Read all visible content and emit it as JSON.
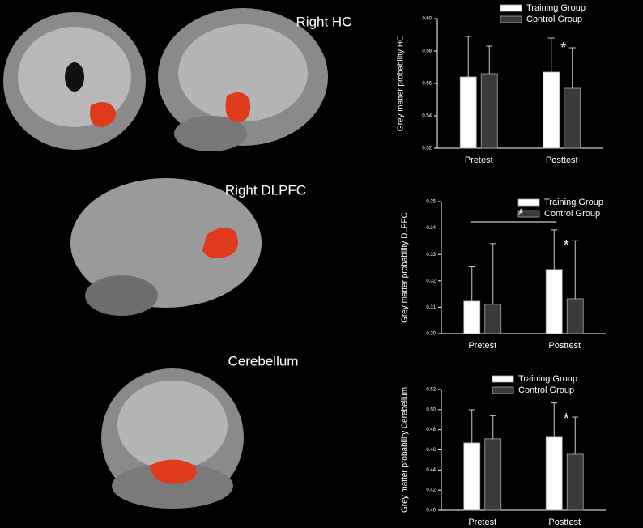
{
  "region_labels": [
    "Right HC",
    "Right DLPFC",
    "Cerebellum"
  ],
  "chart_data": [
    {
      "type": "bar",
      "ylabel": "Grey matter probability HC",
      "categories": [
        "Pretest",
        "Posttest"
      ],
      "series": [
        {
          "name": "Training Group",
          "color": "#ffffff",
          "values": [
            0.564,
            0.567
          ],
          "errors": [
            0.025,
            0.021
          ]
        },
        {
          "name": "Control Group",
          "color": "#3a3a3a",
          "values": [
            0.566,
            0.557
          ],
          "errors": [
            0.017,
            0.025
          ]
        }
      ],
      "ylim": [
        0.52,
        0.6
      ],
      "yticks": [
        0.52,
        0.54,
        0.56,
        0.58,
        {
          "value": 0.6,
          "label": "0.60"
        }
      ],
      "legend": "upper right",
      "annotations": [
        "*"
      ]
    },
    {
      "type": "bar",
      "ylabel": "Grey matter probability DLPFC",
      "categories": [
        "Pretest",
        "Posttest"
      ],
      "series": [
        {
          "name": "Training Group",
          "color": "#ffffff",
          "values": [
            0.3123,
            0.3243
          ],
          "errors": [
            0.013,
            0.015
          ]
        },
        {
          "name": "Control Group",
          "color": "#3a3a3a",
          "values": [
            0.3111,
            0.3132
          ],
          "errors": [
            0.023,
            0.022
          ]
        }
      ],
      "ylim": [
        0.3,
        0.35
      ],
      "yticks": [
        {
          "value": 0.3,
          "label": "0.30"
        },
        0.31,
        0.32,
        0.33,
        0.34,
        0.35
      ],
      "legend": "upper right",
      "annotations": [
        "*",
        "*"
      ]
    },
    {
      "type": "bar",
      "ylabel": "Grey matter probability Cerebellum",
      "categories": [
        "Pretest",
        "Posttest"
      ],
      "series": [
        {
          "name": "Training Group",
          "color": "#ffffff",
          "values": [
            0.4669,
            0.4726
          ],
          "errors": [
            0.033,
            0.034
          ]
        },
        {
          "name": "Control Group",
          "color": "#3a3a3a",
          "values": [
            0.471,
            0.4556
          ],
          "errors": [
            0.023,
            0.037
          ]
        }
      ],
      "ylim": [
        0.4,
        0.52
      ],
      "yticks": [
        {
          "value": 0.4,
          "label": "0.40"
        },
        0.42,
        0.44,
        0.46,
        0.48,
        {
          "value": 0.5,
          "label": "0.50"
        },
        0.52
      ],
      "legend": "upper right",
      "annotations": [
        "*"
      ]
    }
  ]
}
